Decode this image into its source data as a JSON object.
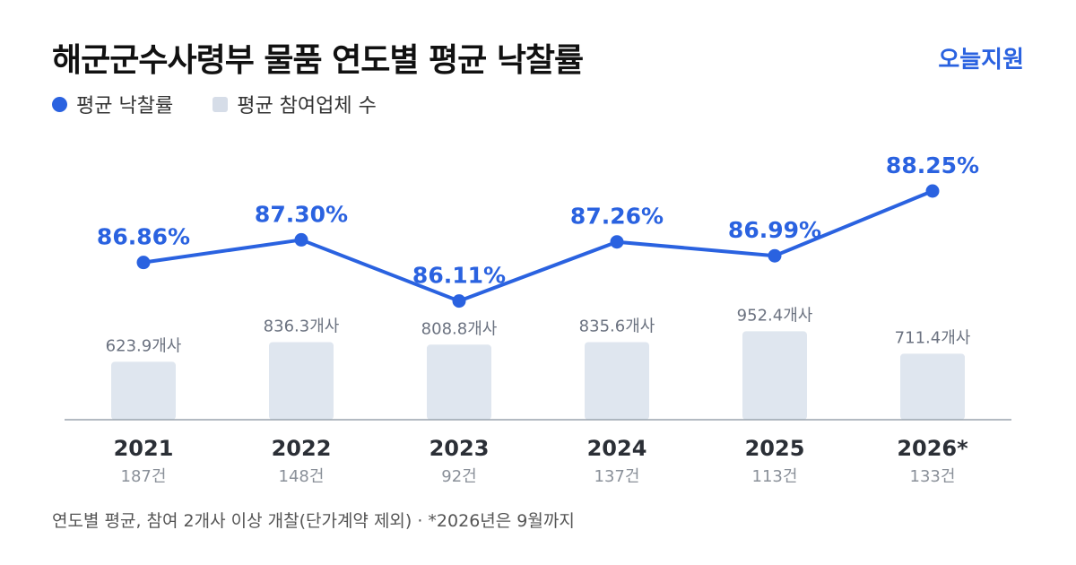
{
  "header": {
    "title": "해군군수사령부 물품 연도별 평균 낙찰률",
    "brand": "오늘지원"
  },
  "legend": {
    "rate_label": "평균 낙찰률",
    "count_label": "평균 참여업체 수"
  },
  "footnote": "연도별 평균, 참여 2개사 이상 개찰(단가계약 제외) · *2026년은 9월까지",
  "colors": {
    "line": "#2a62e0",
    "bar": "#dfe6ef",
    "axis": "#9aa3ad",
    "year": "#2b2f36",
    "sub": "#8a9099"
  },
  "chart_data": {
    "type": "bar+line",
    "categories": [
      "2021",
      "2022",
      "2023",
      "2024",
      "2025",
      "2026*"
    ],
    "category_sublabels": [
      "187건",
      "148건",
      "92건",
      "137건",
      "113건",
      "133건"
    ],
    "series": [
      {
        "name": "평균 낙찰률",
        "type": "line",
        "values": [
          86.86,
          87.3,
          86.11,
          87.26,
          86.99,
          88.25
        ],
        "labels": [
          "86.86%",
          "87.30%",
          "86.11%",
          "87.26%",
          "86.99%",
          "88.25%"
        ]
      },
      {
        "name": "평균 참여업체 수",
        "type": "bar",
        "values": [
          623.9,
          836.3,
          808.8,
          835.6,
          952.4,
          711.4
        ],
        "labels": [
          "623.9개사",
          "836.3개사",
          "808.8개사",
          "835.6개사",
          "952.4개사",
          "711.4개사"
        ]
      }
    ]
  }
}
